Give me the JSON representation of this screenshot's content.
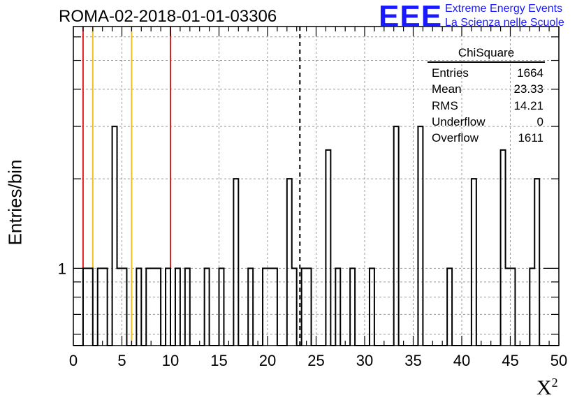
{
  "header": {
    "title": "ROMA-02-2018-01-01-03306",
    "logo_text": "EEE",
    "logo_line1": "Extreme Energy Events",
    "logo_line2": "La Scienza nelle Scuole"
  },
  "stats_box": {
    "title": "ChiSquare",
    "rows": [
      {
        "label": "Entries",
        "value": "1664"
      },
      {
        "label": "Mean",
        "value": "23.33"
      },
      {
        "label": "RMS",
        "value": "14.21"
      },
      {
        "label": "Underflow",
        "value": "0"
      },
      {
        "label": "Overflow",
        "value": "1611"
      }
    ]
  },
  "chart_data": {
    "type": "histogram",
    "title": "ROMA-02-2018-01-01-03306",
    "xlabel": "X",
    "xlabel_superscript": "2",
    "ylabel": "Entries/bin",
    "xlim": [
      0,
      50
    ],
    "ylim": [
      0.55,
      6.5
    ],
    "y_scale": "log",
    "bin_width": 0.5,
    "grid": true,
    "x_ticks": [
      0,
      5,
      10,
      15,
      20,
      25,
      30,
      35,
      40,
      45,
      50
    ],
    "x_tick_labels": [
      "0",
      "5",
      "10",
      "15",
      "20",
      "25",
      "30",
      "35",
      "40",
      "45",
      "50"
    ],
    "y_tick_labels": [
      {
        "value": 1,
        "label": "1"
      }
    ],
    "bins": [
      {
        "x": 1.0,
        "count": 1
      },
      {
        "x": 1.5,
        "count": 1
      },
      {
        "x": 2.5,
        "count": 1
      },
      {
        "x": 3.0,
        "count": 1
      },
      {
        "x": 4.0,
        "count": 3
      },
      {
        "x": 4.5,
        "count": 1
      },
      {
        "x": 5.0,
        "count": 1
      },
      {
        "x": 6.5,
        "count": 1
      },
      {
        "x": 7.5,
        "count": 1
      },
      {
        "x": 8.0,
        "count": 1
      },
      {
        "x": 8.5,
        "count": 1
      },
      {
        "x": 9.5,
        "count": 1
      },
      {
        "x": 10.5,
        "count": 1
      },
      {
        "x": 11.5,
        "count": 1
      },
      {
        "x": 13.5,
        "count": 1
      },
      {
        "x": 15.0,
        "count": 1
      },
      {
        "x": 16.5,
        "count": 2
      },
      {
        "x": 18.0,
        "count": 1
      },
      {
        "x": 19.5,
        "count": 1
      },
      {
        "x": 20.0,
        "count": 1
      },
      {
        "x": 20.5,
        "count": 1
      },
      {
        "x": 22.0,
        "count": 2
      },
      {
        "x": 22.5,
        "count": 1
      },
      {
        "x": 23.5,
        "count": 1
      },
      {
        "x": 24.0,
        "count": 1
      },
      {
        "x": 26.0,
        "count": 2.5
      },
      {
        "x": 27.0,
        "count": 1
      },
      {
        "x": 28.5,
        "count": 1
      },
      {
        "x": 30.5,
        "count": 1
      },
      {
        "x": 33.0,
        "count": 3
      },
      {
        "x": 35.5,
        "count": 3
      },
      {
        "x": 38.5,
        "count": 1
      },
      {
        "x": 41.0,
        "count": 2
      },
      {
        "x": 44.0,
        "count": 2.5
      },
      {
        "x": 44.5,
        "count": 1
      },
      {
        "x": 45.0,
        "count": 1
      },
      {
        "x": 47.0,
        "count": 1
      },
      {
        "x": 47.5,
        "count": 2
      }
    ],
    "vertical_lines": [
      {
        "x": 1,
        "color": "#e02020",
        "style": "solid"
      },
      {
        "x": 2,
        "color": "#f0c020",
        "style": "solid"
      },
      {
        "x": 6,
        "color": "#f0c020",
        "style": "solid"
      },
      {
        "x": 10,
        "color": "#e02020",
        "style": "solid"
      },
      {
        "x": 23.33,
        "color": "#000000",
        "style": "dashed"
      }
    ]
  }
}
